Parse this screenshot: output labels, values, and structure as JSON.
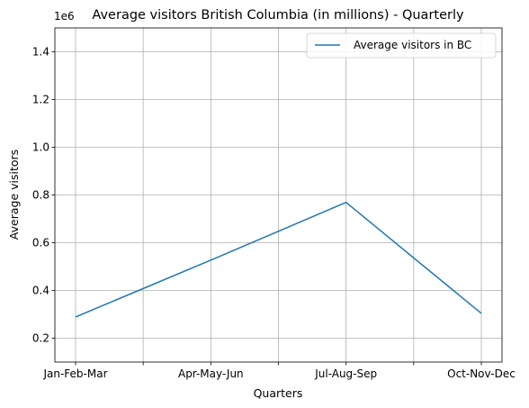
{
  "chart_data": {
    "type": "line",
    "title": "Average visitors British Columbia (in millions) - Quarterly",
    "xlabel": "Quarters",
    "ylabel": "Average visitors",
    "y_offset_label": "1e6",
    "categories": [
      "Jan-Feb-Mar",
      "Apr-May-Jun",
      "Jul-Aug-Sep",
      "Oct-Nov-Dec"
    ],
    "series": [
      {
        "name": "Average visitors in BC",
        "color": "#1f77b4",
        "values": [
          289000,
          527000,
          769000,
          304000
        ]
      }
    ],
    "ylim": [
      100000,
      1500000
    ],
    "yticks": [
      200000,
      400000,
      600000,
      800000,
      1000000,
      1200000,
      1400000
    ],
    "ytick_labels": [
      "0.2",
      "0.4",
      "0.6",
      "0.8",
      "1.0",
      "1.2",
      "1.4"
    ],
    "grid": true,
    "legend_position": "upper right"
  }
}
